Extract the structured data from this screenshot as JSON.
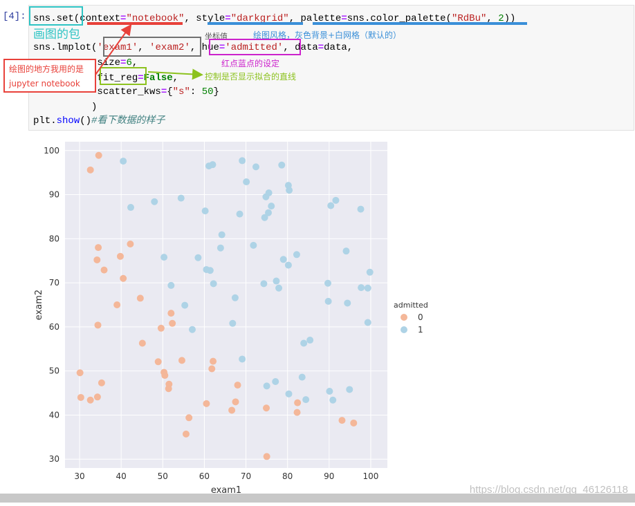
{
  "cell": {
    "prompt": "[4]:",
    "lines": [
      [
        [
          "sns.set(",
          ""
        ],
        [
          "context",
          ""
        ],
        [
          "=",
          "k-eq"
        ],
        [
          "\"notebook\"",
          "k-str"
        ],
        [
          ", ",
          ""
        ],
        [
          "style",
          ""
        ],
        [
          "=",
          "k-eq"
        ],
        [
          "\"darkgrid\"",
          "k-str"
        ],
        [
          ", ",
          ""
        ],
        [
          "palette",
          ""
        ],
        [
          "=",
          "k-eq"
        ],
        [
          "sns.color_palette(",
          ""
        ],
        [
          "\"RdBu\"",
          "k-str"
        ],
        [
          ", ",
          ""
        ],
        [
          "2",
          "k-num"
        ],
        [
          "))",
          ""
        ]
      ],
      [
        [
          "sns.lmplot(",
          ""
        ],
        [
          "'exam1'",
          "k-str"
        ],
        [
          ", ",
          ""
        ],
        [
          "'exam2'",
          "k-str"
        ],
        [
          ", ",
          ""
        ],
        [
          "hue",
          ""
        ],
        [
          "=",
          "k-eq"
        ],
        [
          "'admitted'",
          "k-str"
        ],
        [
          ", data",
          ""
        ],
        [
          "=",
          "k-eq"
        ],
        [
          "data,",
          ""
        ]
      ],
      [
        [
          "           size",
          ""
        ],
        [
          "=",
          "k-eq"
        ],
        [
          "6",
          "k-num"
        ],
        [
          ",",
          ""
        ]
      ],
      [
        [
          "           fit_reg",
          ""
        ],
        [
          "=",
          "k-eq"
        ],
        [
          "False",
          "k-kw"
        ],
        [
          ",",
          ""
        ]
      ],
      [
        [
          "           scatter_kws",
          ""
        ],
        [
          "=",
          "k-eq"
        ],
        [
          "{",
          ""
        ],
        [
          "\"s\"",
          "k-str"
        ],
        [
          ": ",
          ""
        ],
        [
          "50",
          "k-num"
        ],
        [
          "}",
          ""
        ]
      ],
      [
        [
          "          )",
          ""
        ]
      ],
      [
        [
          "plt.",
          ""
        ],
        [
          "show",
          "k-fn"
        ],
        [
          "()",
          ""
        ],
        [
          "#看下数据的样子",
          "k-cm"
        ]
      ]
    ]
  },
  "annotations": {
    "package": "画图的包",
    "jupyter": "绘图的地方我用的是\njupyter notebook",
    "coords": "坐标值",
    "style": "绘图风格，灰色背景+白网格（默认的）",
    "hue": "红点蓝点的设定",
    "fit_reg": "控制是否显示拟合的直线"
  },
  "colors": {
    "cyan": "#2ec4c4",
    "red": "#e8413a",
    "gray": "#707070",
    "blue": "#3a8fd8",
    "magenta": "#cc22cc",
    "green": "#8cc21e",
    "pt0": "#f4b799",
    "pt1": "#aed3e6",
    "plotbg": "#eaeaf2"
  },
  "chart_data": {
    "type": "scatter",
    "xlabel": "exam1",
    "ylabel": "exam2",
    "xticks": [
      30,
      40,
      50,
      60,
      70,
      80,
      90,
      100
    ],
    "yticks": [
      30,
      40,
      50,
      60,
      70,
      80,
      90,
      100
    ],
    "xlim": [
      26.5,
      104
    ],
    "ylim": [
      28,
      102
    ],
    "legend_title": "admitted",
    "grid": true,
    "legend": "right",
    "series": [
      {
        "name": "0",
        "color": "#f4b799",
        "points": [
          [
            34.6,
            98.9
          ],
          [
            32.6,
            95.6
          ],
          [
            34.2,
            75.2
          ],
          [
            34.5,
            78.0
          ],
          [
            35.9,
            72.9
          ],
          [
            39.8,
            76.0
          ],
          [
            42.2,
            78.8
          ],
          [
            40.5,
            71.0
          ],
          [
            44.6,
            66.5
          ],
          [
            39.0,
            65.0
          ],
          [
            34.4,
            60.4
          ],
          [
            45.1,
            56.3
          ],
          [
            48.9,
            52.1
          ],
          [
            49.6,
            59.7
          ],
          [
            52.0,
            63.1
          ],
          [
            52.3,
            60.8
          ],
          [
            50.3,
            49.7
          ],
          [
            50.5,
            49.0
          ],
          [
            51.5,
            47.0
          ],
          [
            51.4,
            46.0
          ],
          [
            54.6,
            52.4
          ],
          [
            62.1,
            52.2
          ],
          [
            61.8,
            50.5
          ],
          [
            60.5,
            42.6
          ],
          [
            30.1,
            49.6
          ],
          [
            30.3,
            44.0
          ],
          [
            32.6,
            43.4
          ],
          [
            34.3,
            44.1
          ],
          [
            35.3,
            47.3
          ],
          [
            56.3,
            39.4
          ],
          [
            55.6,
            35.7
          ],
          [
            66.6,
            41.1
          ],
          [
            67.5,
            43.0
          ],
          [
            68.0,
            46.8
          ],
          [
            74.9,
            41.6
          ],
          [
            75.0,
            30.6
          ],
          [
            82.4,
            42.8
          ],
          [
            82.3,
            40.6
          ],
          [
            93.1,
            38.8
          ],
          [
            95.9,
            38.2
          ]
        ]
      },
      {
        "name": "1",
        "color": "#aed3e6",
        "points": [
          [
            40.5,
            97.6
          ],
          [
            42.3,
            87.1
          ],
          [
            48.0,
            88.4
          ],
          [
            54.4,
            89.2
          ],
          [
            50.3,
            75.8
          ],
          [
            52.0,
            69.4
          ],
          [
            55.3,
            64.9
          ],
          [
            57.1,
            59.4
          ],
          [
            58.5,
            75.7
          ],
          [
            60.2,
            86.3
          ],
          [
            60.5,
            73.0
          ],
          [
            61.4,
            72.8
          ],
          [
            62.2,
            69.8
          ],
          [
            61.1,
            96.5
          ],
          [
            62.0,
            96.8
          ],
          [
            63.9,
            77.9
          ],
          [
            64.2,
            80.9
          ],
          [
            67.4,
            66.6
          ],
          [
            66.8,
            60.8
          ],
          [
            68.5,
            85.6
          ],
          [
            69.1,
            97.7
          ],
          [
            70.1,
            92.9
          ],
          [
            71.8,
            78.5
          ],
          [
            72.4,
            96.3
          ],
          [
            74.5,
            84.8
          ],
          [
            74.8,
            89.5
          ],
          [
            75.5,
            90.4
          ],
          [
            75.4,
            85.9
          ],
          [
            76.1,
            87.4
          ],
          [
            74.3,
            69.8
          ],
          [
            77.3,
            70.4
          ],
          [
            77.9,
            68.8
          ],
          [
            78.6,
            96.7
          ],
          [
            79.0,
            75.3
          ],
          [
            80.2,
            92.1
          ],
          [
            80.4,
            91.0
          ],
          [
            80.2,
            74.0
          ],
          [
            82.2,
            76.4
          ],
          [
            83.5,
            48.6
          ],
          [
            83.9,
            56.3
          ],
          [
            85.4,
            57.0
          ],
          [
            84.4,
            43.5
          ],
          [
            80.3,
            44.8
          ],
          [
            75.0,
            46.6
          ],
          [
            77.1,
            47.6
          ],
          [
            69.1,
            52.7
          ],
          [
            89.7,
            69.9
          ],
          [
            90.4,
            87.5
          ],
          [
            91.6,
            88.7
          ],
          [
            89.8,
            65.8
          ],
          [
            90.1,
            45.4
          ],
          [
            90.9,
            43.4
          ],
          [
            94.1,
            77.2
          ],
          [
            94.4,
            65.4
          ],
          [
            94.9,
            45.8
          ],
          [
            97.6,
            86.7
          ],
          [
            97.7,
            68.9
          ],
          [
            99.3,
            68.8
          ],
          [
            99.8,
            72.4
          ],
          [
            99.3,
            61.0
          ]
        ]
      }
    ]
  },
  "watermark": "https://blog.csdn.net/qq_46126118"
}
